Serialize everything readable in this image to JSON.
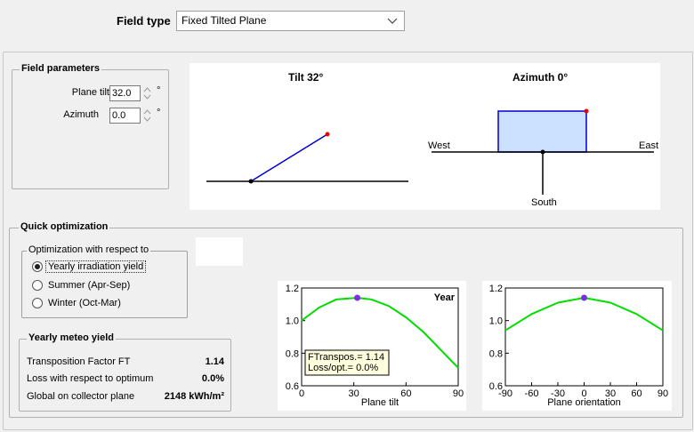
{
  "field_type": {
    "label": "Field type",
    "selected": "Fixed Tilted Plane"
  },
  "field_parameters": {
    "title": "Field parameters",
    "plane_tilt_label": "Plane tilt",
    "plane_tilt_value": "32.0",
    "azimuth_label": "Azimuth",
    "azimuth_value": "0.0",
    "unit": "°"
  },
  "diagram": {
    "tilt_title": "Tilt 32°",
    "azimuth_title": "Azimuth 0°",
    "west": "West",
    "east": "East",
    "south": "South"
  },
  "quick_optimization": {
    "title": "Quick optimization",
    "respect_group_title": "Optimization with respect to",
    "options": [
      {
        "label": "Yearly irradiation yield",
        "selected": true
      },
      {
        "label": "Summer (Apr-Sep)",
        "selected": false
      },
      {
        "label": "Winter (Oct-Mar)",
        "selected": false
      }
    ]
  },
  "yearly_meteo": {
    "title": "Yearly meteo yield",
    "rows": [
      {
        "label": "Transposition Factor FT",
        "value": "1.14"
      },
      {
        "label": "Loss with respect to optimum",
        "value": "0.0%"
      },
      {
        "label": "Global on collector plane",
        "value": "2148 kWh/m²"
      }
    ]
  },
  "chart_data": [
    {
      "type": "line",
      "title": "Year",
      "xlabel": "Plane tilt",
      "ylabel": "",
      "xlim": [
        0,
        90
      ],
      "ylim": [
        0.6,
        1.2
      ],
      "xticks": [
        0,
        30,
        60,
        90
      ],
      "yticks": [
        0.6,
        0.8,
        1.0,
        1.2
      ],
      "series": [
        {
          "x": [
            0,
            10,
            20,
            32,
            40,
            50,
            60,
            70,
            80,
            90
          ],
          "y": [
            1.0,
            1.08,
            1.13,
            1.14,
            1.13,
            1.09,
            1.02,
            0.93,
            0.82,
            0.71
          ],
          "color": "#00dd00"
        }
      ],
      "marker": {
        "x": 32,
        "y": 1.14,
        "color": "#7a2fe0"
      },
      "annotation": [
        "FTranspos.= 1.14",
        "Loss/opt.= 0.0%"
      ]
    },
    {
      "type": "line",
      "title": "",
      "xlabel": "Plane orientation",
      "ylabel": "",
      "xlim": [
        -90,
        90
      ],
      "ylim": [
        0.6,
        1.2
      ],
      "xticks": [
        -90,
        -60,
        -30,
        0,
        30,
        60,
        90
      ],
      "yticks": [
        0.6,
        0.8,
        1.0,
        1.2
      ],
      "series": [
        {
          "x": [
            -90,
            -60,
            -30,
            0,
            30,
            60,
            90
          ],
          "y": [
            0.94,
            1.04,
            1.11,
            1.14,
            1.11,
            1.04,
            0.94
          ],
          "color": "#00dd00"
        }
      ],
      "marker": {
        "x": 0,
        "y": 1.14,
        "color": "#7a2fe0"
      }
    }
  ]
}
